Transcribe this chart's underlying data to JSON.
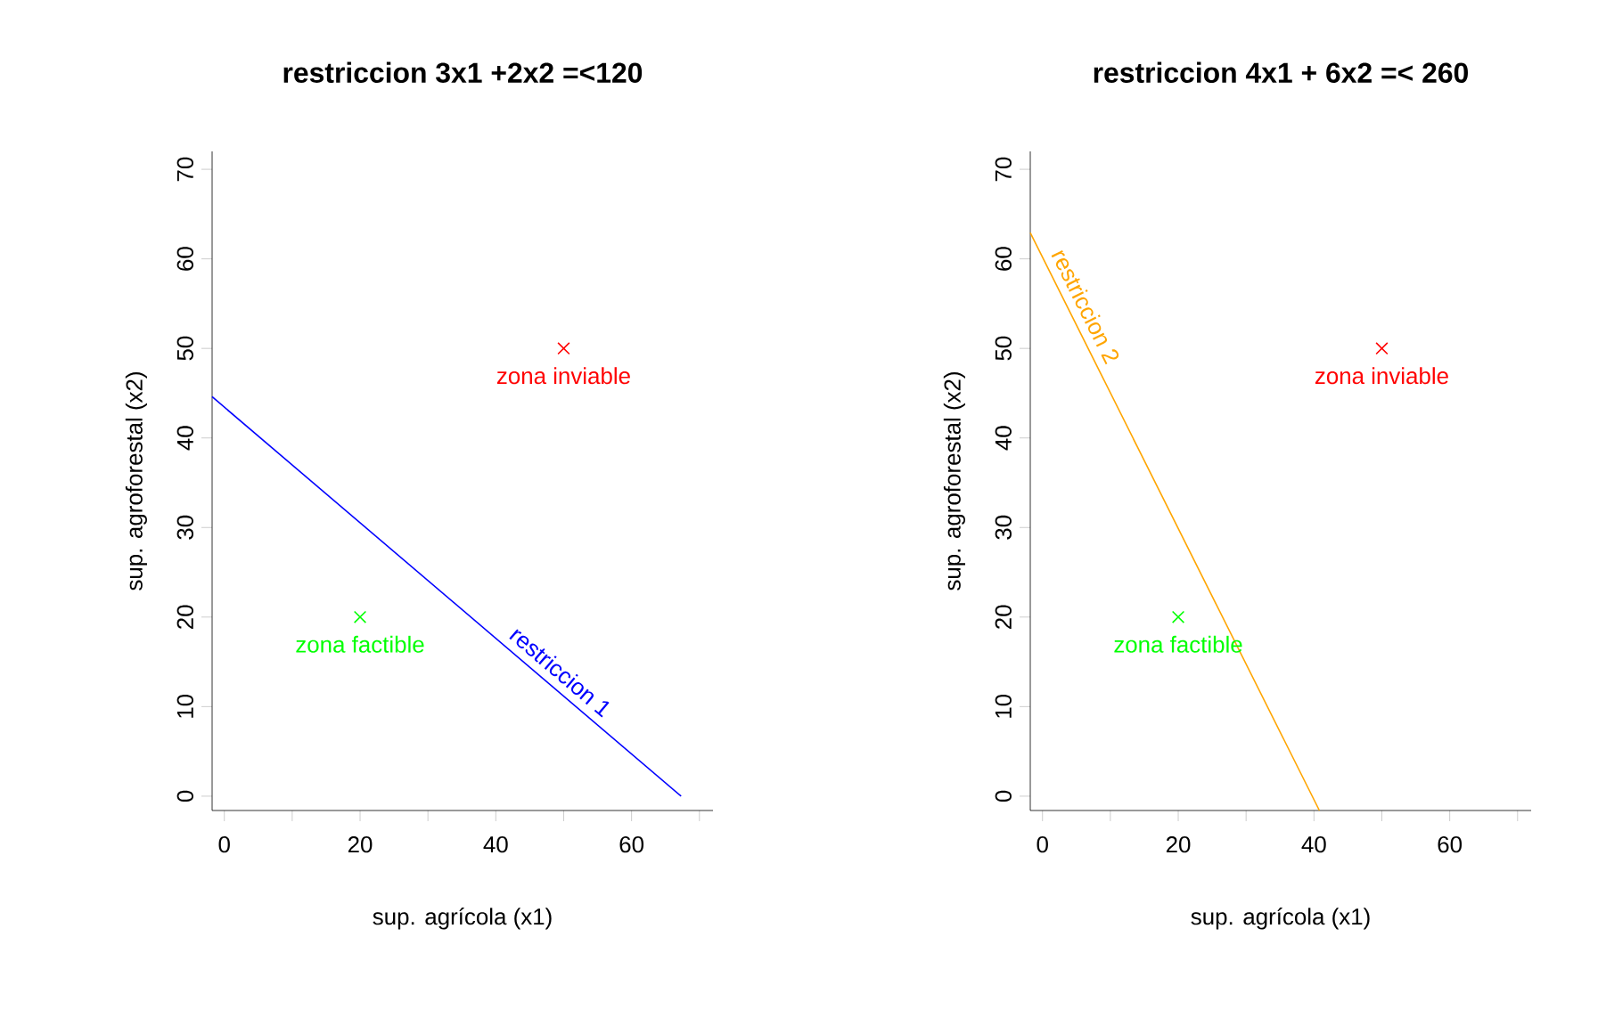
{
  "chart_data": [
    {
      "type": "scatter",
      "title": "restriccion 3x1 +2x2 =<120",
      "xlabel": "sup. agrícola (x1)",
      "ylabel": "sup. agroforestal (x2)",
      "xlim": [
        -1.8,
        72
      ],
      "ylim": [
        -1.6,
        72
      ],
      "xticks": [
        0,
        {
          "value": 10,
          "label": null
        },
        20,
        {
          "value": 30,
          "label": null
        },
        40,
        {
          "value": 50,
          "label": null
        },
        60,
        {
          "value": 70,
          "label": null
        }
      ],
      "yticks": [
        0,
        10,
        20,
        30,
        40,
        50,
        60,
        70
      ],
      "grid": false,
      "series": [
        {
          "type": "line",
          "name": "restriccion 1",
          "color": "#0000ff",
          "x": [
            -1.8,
            67.3
          ],
          "values": [
            44.6,
            0
          ]
        },
        {
          "color": "#00ff00",
          "x": [
            20
          ],
          "values": [
            20
          ],
          "marker": "cross"
        },
        {
          "color": "#ff0000",
          "x": [
            50
          ],
          "values": [
            50
          ],
          "marker": "cross"
        }
      ],
      "annotations": [
        "zona factible",
        "zona inviable"
      ]
    },
    {
      "type": "scatter",
      "title": "restriccion 4x1 + 6x2 =< 260",
      "xlabel": "sup. agrícola (x1)",
      "ylabel": "sup. agroforestal (x2)",
      "xlim": [
        -1.8,
        72
      ],
      "ylim": [
        -1.6,
        72
      ],
      "xticks": [
        0,
        {
          "value": 10,
          "label": null
        },
        20,
        {
          "value": 30,
          "label": null
        },
        40,
        {
          "value": 50,
          "label": null
        },
        60,
        {
          "value": 70,
          "label": null
        }
      ],
      "yticks": [
        0,
        10,
        20,
        30,
        40,
        50,
        60,
        70
      ],
      "grid": false,
      "series": [
        {
          "type": "line",
          "name": "restriccion 2",
          "color": "#ffa500",
          "x": [
            -1.8,
            40.8
          ],
          "values": [
            62.9,
            -1.6
          ]
        },
        {
          "color": "#00ff00",
          "x": [
            20
          ],
          "values": [
            20
          ],
          "marker": "cross"
        },
        {
          "color": "#ff0000",
          "x": [
            50
          ],
          "values": [
            50
          ],
          "marker": "cross"
        }
      ],
      "annotations": [
        "zona factible",
        "zona inviable"
      ]
    }
  ]
}
